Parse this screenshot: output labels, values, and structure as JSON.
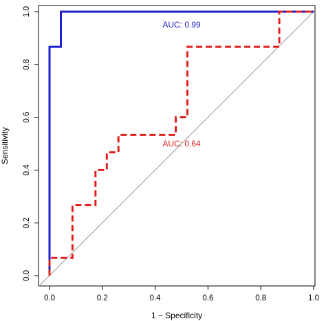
{
  "chart_data": {
    "type": "line",
    "xlabel": "1 − Specificity",
    "ylabel": "Sensitivity",
    "xlim": [
      0,
      1
    ],
    "ylim": [
      0,
      1
    ],
    "x_ticks": [
      0.0,
      0.2,
      0.4,
      0.6,
      0.8,
      1.0
    ],
    "x_tick_labels": [
      "0.0",
      "0.2",
      "0.4",
      "0.6",
      "0.8",
      "1.0"
    ],
    "y_ticks": [
      0.0,
      0.2,
      0.4,
      0.6,
      0.8,
      1.0
    ],
    "y_tick_labels": [
      "0.0",
      "0.2",
      "0.4",
      "0.6",
      "0.8",
      "1.0"
    ],
    "grid": false,
    "reference_line": {
      "x": [
        0,
        1
      ],
      "y": [
        0,
        1
      ],
      "color": "#9a9a9a"
    },
    "series": [
      {
        "color": "#1f1fd0",
        "style": "solid",
        "x": [
          0,
          0,
          0.043,
          0.043,
          1
        ],
        "y": [
          0,
          0.867,
          0.867,
          1,
          1
        ]
      },
      {
        "color": "#e0201c",
        "style": "dashed",
        "x": [
          0,
          0,
          0.087,
          0.087,
          0.174,
          0.174,
          0.217,
          0.217,
          0.261,
          0.261,
          0.478,
          0.478,
          0.522,
          0.522,
          0.87,
          0.87,
          1
        ],
        "y": [
          0,
          0.067,
          0.067,
          0.267,
          0.267,
          0.4,
          0.4,
          0.467,
          0.467,
          0.533,
          0.533,
          0.6,
          0.6,
          0.867,
          0.867,
          1,
          1
        ]
      }
    ],
    "annotations": [
      {
        "text": "AUC: 0.99",
        "x": 0.5,
        "y": 0.94,
        "color": "#1f1fd0"
      },
      {
        "text": "AUC: 0.64",
        "x": 0.5,
        "y": 0.49,
        "color": "#e0201c"
      }
    ]
  }
}
